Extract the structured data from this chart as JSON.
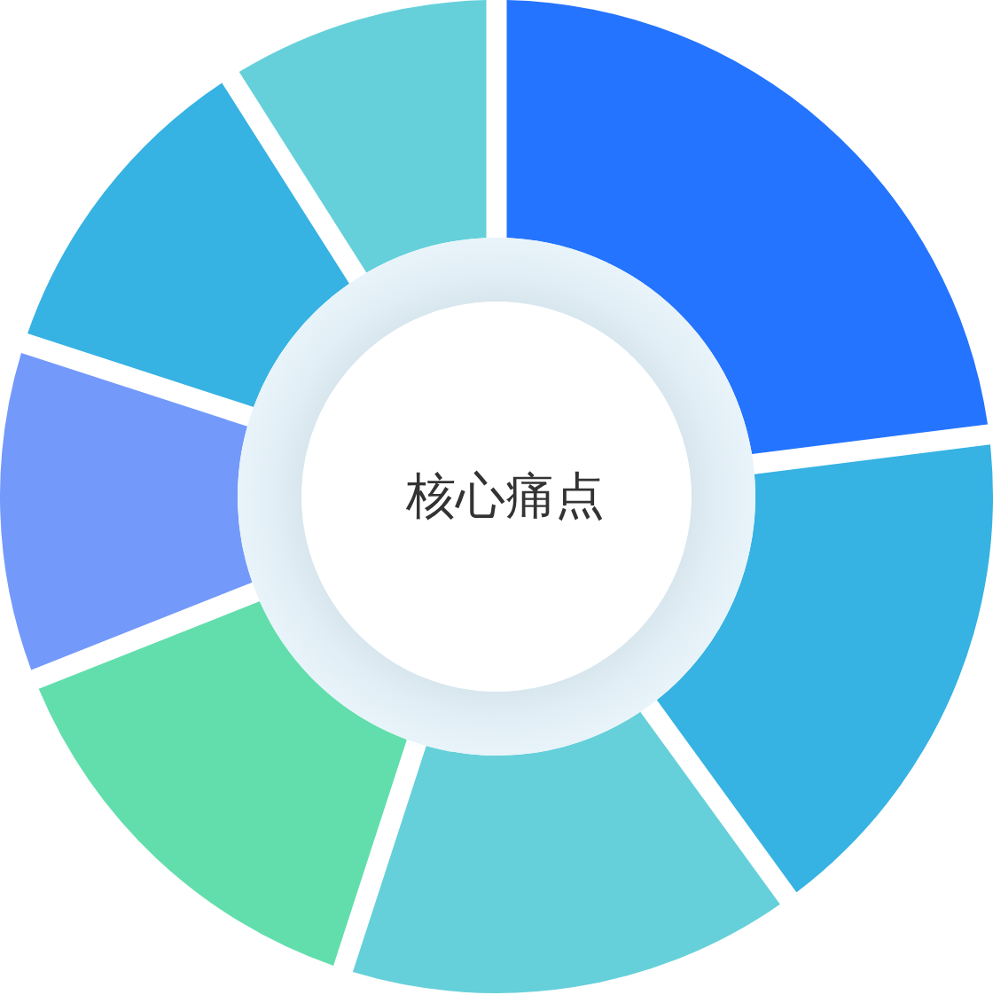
{
  "chart_data": {
    "type": "donut",
    "title": "核心痛点",
    "categories": [
      null,
      null,
      null,
      null,
      null,
      null,
      null
    ],
    "values": [
      23,
      17,
      15,
      14,
      11,
      11,
      9
    ],
    "colors": [
      "#2474ff",
      "#36b2e3",
      "#65d0da",
      "#62deac",
      "#7399fb",
      "#36b2e3",
      "#65d0da"
    ]
  }
}
